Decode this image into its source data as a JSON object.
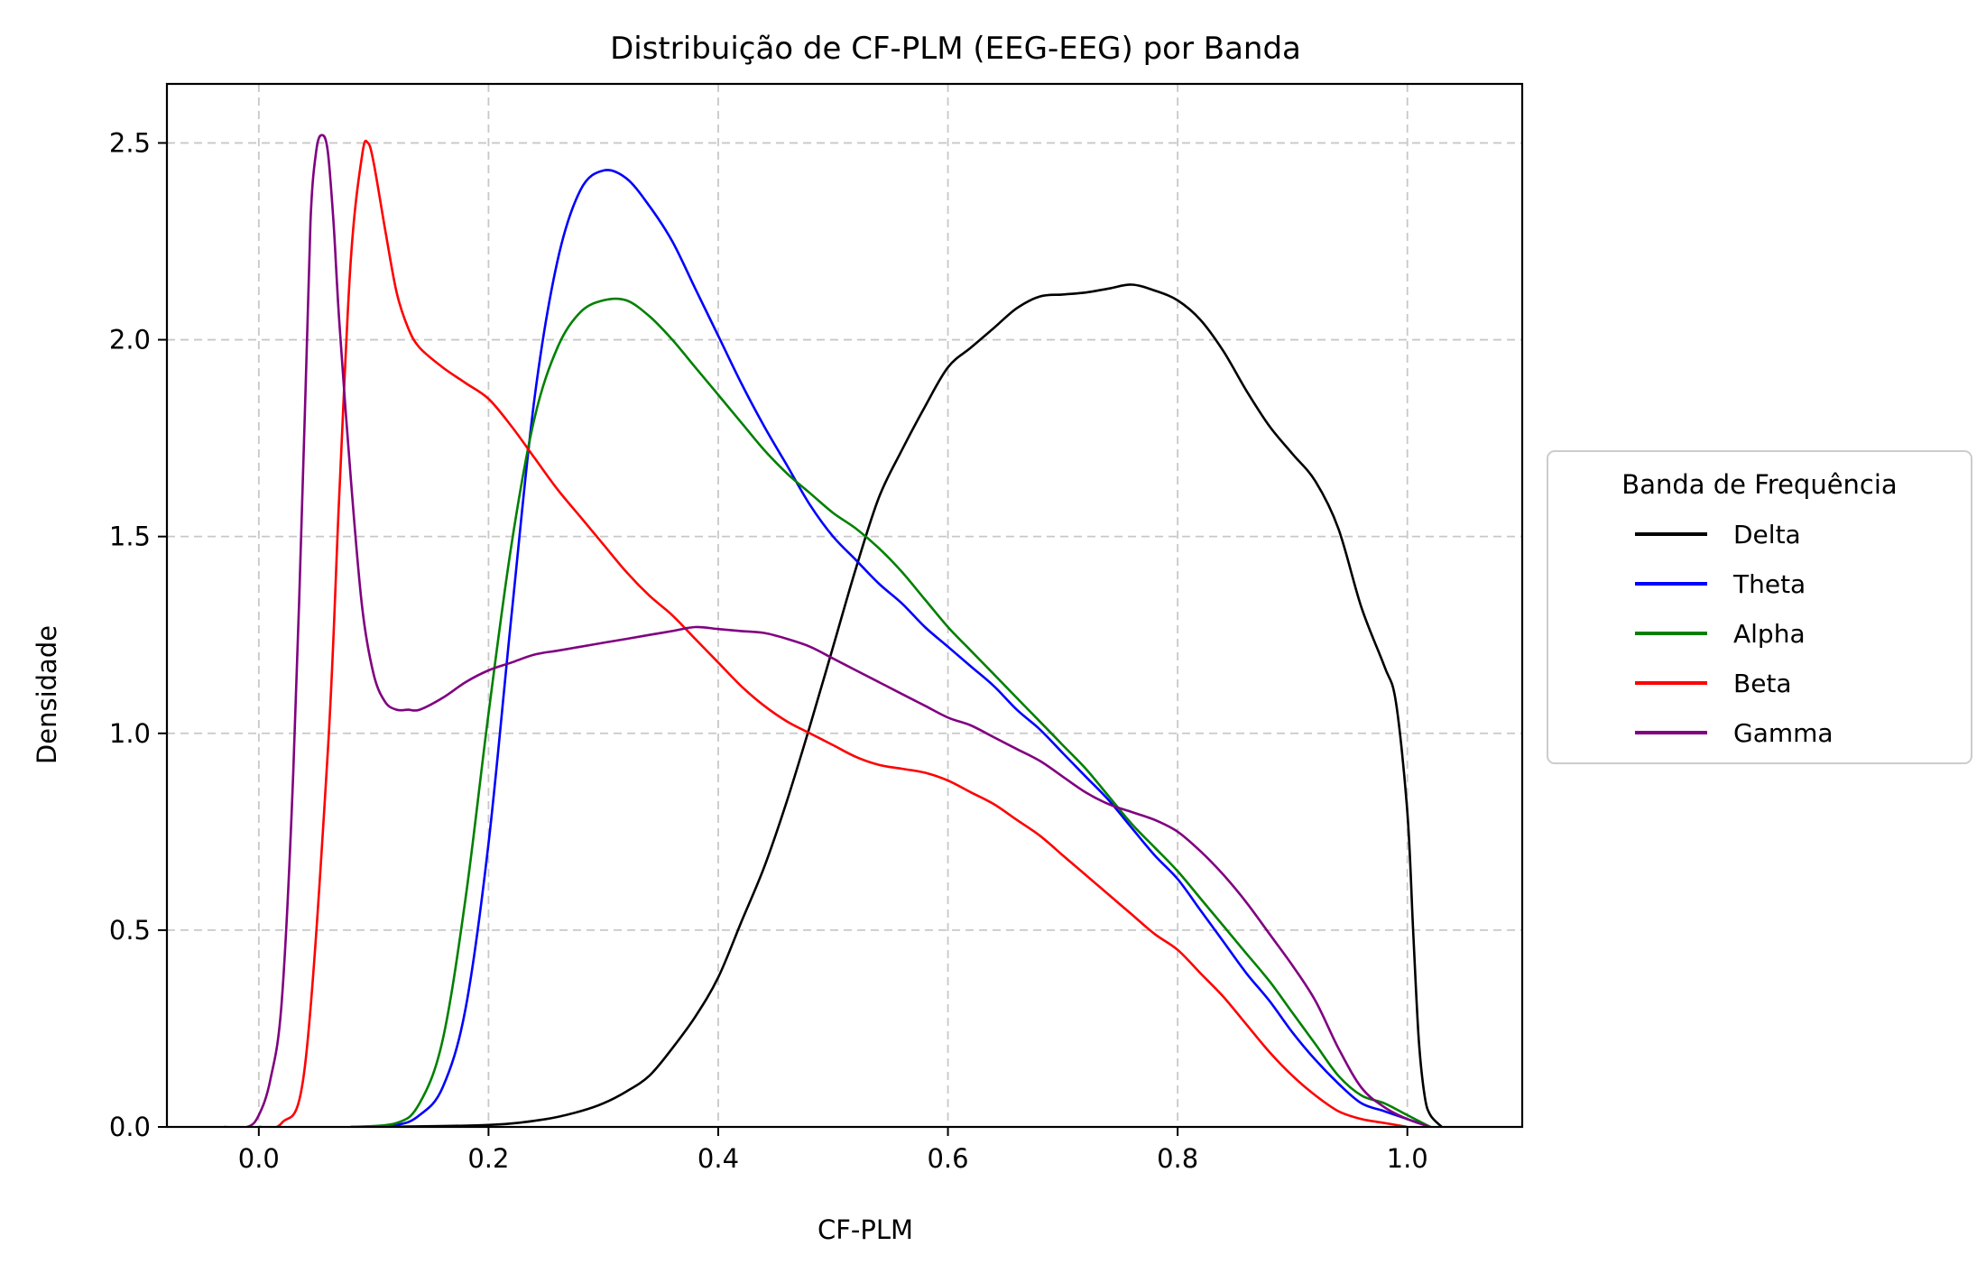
{
  "chart_data": {
    "type": "line",
    "title": "Distribuição de CF-PLM (EEG-EEG) por Banda",
    "xlabel": "CF-PLM",
    "ylabel": "Densidade",
    "xlim": [
      -0.08,
      1.1
    ],
    "ylim": [
      0.0,
      2.65
    ],
    "x_ticks": [
      0.0,
      0.2,
      0.4,
      0.6,
      0.8,
      1.0
    ],
    "x_tick_labels": [
      "0.0",
      "0.2",
      "0.4",
      "0.6",
      "0.8",
      "1.0"
    ],
    "y_ticks": [
      0.0,
      0.5,
      1.0,
      1.5,
      2.0,
      2.5
    ],
    "y_tick_labels": [
      "0.0",
      "0.5",
      "1.0",
      "1.5",
      "2.0",
      "2.5"
    ],
    "grid": true,
    "legend": {
      "title": "Banda de Frequência",
      "placement": "outside-right"
    },
    "series": [
      {
        "name": "Delta",
        "color": "#000000",
        "points": [
          [
            0.1,
            0.0
          ],
          [
            0.2,
            0.005
          ],
          [
            0.25,
            0.02
          ],
          [
            0.28,
            0.04
          ],
          [
            0.3,
            0.06
          ],
          [
            0.32,
            0.09
          ],
          [
            0.34,
            0.13
          ],
          [
            0.36,
            0.2
          ],
          [
            0.38,
            0.28
          ],
          [
            0.4,
            0.38
          ],
          [
            0.42,
            0.52
          ],
          [
            0.44,
            0.66
          ],
          [
            0.46,
            0.83
          ],
          [
            0.48,
            1.02
          ],
          [
            0.5,
            1.22
          ],
          [
            0.52,
            1.42
          ],
          [
            0.54,
            1.6
          ],
          [
            0.56,
            1.72
          ],
          [
            0.58,
            1.83
          ],
          [
            0.6,
            1.93
          ],
          [
            0.62,
            1.98
          ],
          [
            0.64,
            2.03
          ],
          [
            0.66,
            2.08
          ],
          [
            0.68,
            2.11
          ],
          [
            0.7,
            2.115
          ],
          [
            0.72,
            2.12
          ],
          [
            0.74,
            2.13
          ],
          [
            0.76,
            2.14
          ],
          [
            0.78,
            2.125
          ],
          [
            0.8,
            2.1
          ],
          [
            0.82,
            2.05
          ],
          [
            0.84,
            1.97
          ],
          [
            0.86,
            1.87
          ],
          [
            0.88,
            1.78
          ],
          [
            0.9,
            1.71
          ],
          [
            0.92,
            1.64
          ],
          [
            0.94,
            1.52
          ],
          [
            0.96,
            1.32
          ],
          [
            0.98,
            1.17
          ],
          [
            0.99,
            1.08
          ],
          [
            1.0,
            0.8
          ],
          [
            1.005,
            0.5
          ],
          [
            1.01,
            0.22
          ],
          [
            1.015,
            0.08
          ],
          [
            1.02,
            0.03
          ],
          [
            1.03,
            0.0
          ]
        ]
      },
      {
        "name": "Theta",
        "color": "#0000ff",
        "points": [
          [
            0.08,
            0.0
          ],
          [
            0.12,
            0.005
          ],
          [
            0.14,
            0.03
          ],
          [
            0.16,
            0.1
          ],
          [
            0.18,
            0.3
          ],
          [
            0.2,
            0.72
          ],
          [
            0.22,
            1.3
          ],
          [
            0.24,
            1.85
          ],
          [
            0.26,
            2.2
          ],
          [
            0.28,
            2.38
          ],
          [
            0.3,
            2.43
          ],
          [
            0.32,
            2.41
          ],
          [
            0.34,
            2.34
          ],
          [
            0.36,
            2.25
          ],
          [
            0.38,
            2.13
          ],
          [
            0.4,
            2.01
          ],
          [
            0.42,
            1.89
          ],
          [
            0.44,
            1.78
          ],
          [
            0.46,
            1.68
          ],
          [
            0.48,
            1.58
          ],
          [
            0.5,
            1.5
          ],
          [
            0.52,
            1.44
          ],
          [
            0.54,
            1.38
          ],
          [
            0.56,
            1.33
          ],
          [
            0.58,
            1.27
          ],
          [
            0.6,
            1.22
          ],
          [
            0.62,
            1.17
          ],
          [
            0.64,
            1.12
          ],
          [
            0.66,
            1.06
          ],
          [
            0.68,
            1.01
          ],
          [
            0.7,
            0.95
          ],
          [
            0.72,
            0.89
          ],
          [
            0.74,
            0.83
          ],
          [
            0.76,
            0.76
          ],
          [
            0.78,
            0.69
          ],
          [
            0.8,
            0.63
          ],
          [
            0.82,
            0.55
          ],
          [
            0.84,
            0.47
          ],
          [
            0.86,
            0.39
          ],
          [
            0.88,
            0.32
          ],
          [
            0.9,
            0.24
          ],
          [
            0.92,
            0.17
          ],
          [
            0.94,
            0.11
          ],
          [
            0.96,
            0.06
          ],
          [
            0.98,
            0.04
          ],
          [
            1.0,
            0.02
          ],
          [
            1.02,
            0.0
          ]
        ]
      },
      {
        "name": "Alpha",
        "color": "#008000",
        "points": [
          [
            0.08,
            0.0
          ],
          [
            0.12,
            0.01
          ],
          [
            0.14,
            0.06
          ],
          [
            0.16,
            0.22
          ],
          [
            0.18,
            0.58
          ],
          [
            0.2,
            1.05
          ],
          [
            0.22,
            1.48
          ],
          [
            0.24,
            1.8
          ],
          [
            0.26,
            1.98
          ],
          [
            0.28,
            2.07
          ],
          [
            0.3,
            2.1
          ],
          [
            0.32,
            2.1
          ],
          [
            0.34,
            2.06
          ],
          [
            0.36,
            2.0
          ],
          [
            0.38,
            1.93
          ],
          [
            0.4,
            1.86
          ],
          [
            0.42,
            1.79
          ],
          [
            0.44,
            1.72
          ],
          [
            0.46,
            1.66
          ],
          [
            0.48,
            1.61
          ],
          [
            0.5,
            1.56
          ],
          [
            0.52,
            1.52
          ],
          [
            0.54,
            1.47
          ],
          [
            0.56,
            1.41
          ],
          [
            0.58,
            1.34
          ],
          [
            0.6,
            1.27
          ],
          [
            0.62,
            1.21
          ],
          [
            0.64,
            1.15
          ],
          [
            0.66,
            1.09
          ],
          [
            0.68,
            1.03
          ],
          [
            0.7,
            0.97
          ],
          [
            0.72,
            0.91
          ],
          [
            0.74,
            0.84
          ],
          [
            0.76,
            0.77
          ],
          [
            0.78,
            0.71
          ],
          [
            0.8,
            0.65
          ],
          [
            0.82,
            0.58
          ],
          [
            0.84,
            0.51
          ],
          [
            0.86,
            0.44
          ],
          [
            0.88,
            0.37
          ],
          [
            0.9,
            0.29
          ],
          [
            0.92,
            0.21
          ],
          [
            0.94,
            0.13
          ],
          [
            0.96,
            0.08
          ],
          [
            0.98,
            0.06
          ],
          [
            1.0,
            0.03
          ],
          [
            1.02,
            0.0
          ]
        ]
      },
      {
        "name": "Beta",
        "color": "#ff0000",
        "points": [
          [
            0.0,
            0.0
          ],
          [
            0.02,
            0.01
          ],
          [
            0.04,
            0.15
          ],
          [
            0.06,
            0.95
          ],
          [
            0.07,
            1.6
          ],
          [
            0.08,
            2.2
          ],
          [
            0.09,
            2.47
          ],
          [
            0.095,
            2.5
          ],
          [
            0.1,
            2.45
          ],
          [
            0.11,
            2.28
          ],
          [
            0.12,
            2.12
          ],
          [
            0.13,
            2.03
          ],
          [
            0.14,
            1.98
          ],
          [
            0.16,
            1.93
          ],
          [
            0.18,
            1.89
          ],
          [
            0.2,
            1.85
          ],
          [
            0.22,
            1.78
          ],
          [
            0.24,
            1.7
          ],
          [
            0.26,
            1.62
          ],
          [
            0.28,
            1.55
          ],
          [
            0.3,
            1.48
          ],
          [
            0.32,
            1.41
          ],
          [
            0.34,
            1.35
          ],
          [
            0.36,
            1.3
          ],
          [
            0.38,
            1.24
          ],
          [
            0.4,
            1.18
          ],
          [
            0.42,
            1.12
          ],
          [
            0.44,
            1.07
          ],
          [
            0.46,
            1.03
          ],
          [
            0.48,
            1.0
          ],
          [
            0.5,
            0.97
          ],
          [
            0.52,
            0.94
          ],
          [
            0.54,
            0.92
          ],
          [
            0.56,
            0.91
          ],
          [
            0.58,
            0.9
          ],
          [
            0.6,
            0.88
          ],
          [
            0.62,
            0.85
          ],
          [
            0.64,
            0.82
          ],
          [
            0.66,
            0.78
          ],
          [
            0.68,
            0.74
          ],
          [
            0.7,
            0.69
          ],
          [
            0.72,
            0.64
          ],
          [
            0.74,
            0.59
          ],
          [
            0.76,
            0.54
          ],
          [
            0.78,
            0.49
          ],
          [
            0.8,
            0.45
          ],
          [
            0.82,
            0.39
          ],
          [
            0.84,
            0.33
          ],
          [
            0.86,
            0.26
          ],
          [
            0.88,
            0.19
          ],
          [
            0.9,
            0.13
          ],
          [
            0.92,
            0.08
          ],
          [
            0.94,
            0.04
          ],
          [
            0.96,
            0.02
          ],
          [
            0.98,
            0.01
          ],
          [
            1.0,
            0.0
          ]
        ]
      },
      {
        "name": "Gamma",
        "color": "#800080",
        "points": [
          [
            -0.03,
            0.0
          ],
          [
            -0.01,
            0.0
          ],
          [
            0.0,
            0.03
          ],
          [
            0.01,
            0.12
          ],
          [
            0.02,
            0.32
          ],
          [
            0.03,
            0.9
          ],
          [
            0.04,
            1.8
          ],
          [
            0.045,
            2.3
          ],
          [
            0.05,
            2.48
          ],
          [
            0.055,
            2.52
          ],
          [
            0.06,
            2.48
          ],
          [
            0.065,
            2.3
          ],
          [
            0.07,
            2.05
          ],
          [
            0.08,
            1.65
          ],
          [
            0.09,
            1.32
          ],
          [
            0.1,
            1.15
          ],
          [
            0.11,
            1.08
          ],
          [
            0.12,
            1.06
          ],
          [
            0.13,
            1.06
          ],
          [
            0.14,
            1.06
          ],
          [
            0.16,
            1.09
          ],
          [
            0.18,
            1.13
          ],
          [
            0.2,
            1.16
          ],
          [
            0.22,
            1.18
          ],
          [
            0.24,
            1.2
          ],
          [
            0.26,
            1.21
          ],
          [
            0.28,
            1.22
          ],
          [
            0.3,
            1.23
          ],
          [
            0.32,
            1.24
          ],
          [
            0.34,
            1.25
          ],
          [
            0.36,
            1.26
          ],
          [
            0.38,
            1.27
          ],
          [
            0.4,
            1.265
          ],
          [
            0.42,
            1.26
          ],
          [
            0.44,
            1.255
          ],
          [
            0.46,
            1.24
          ],
          [
            0.48,
            1.22
          ],
          [
            0.5,
            1.19
          ],
          [
            0.52,
            1.16
          ],
          [
            0.54,
            1.13
          ],
          [
            0.56,
            1.1
          ],
          [
            0.58,
            1.07
          ],
          [
            0.6,
            1.04
          ],
          [
            0.62,
            1.02
          ],
          [
            0.64,
            0.99
          ],
          [
            0.66,
            0.96
          ],
          [
            0.68,
            0.93
          ],
          [
            0.7,
            0.89
          ],
          [
            0.72,
            0.85
          ],
          [
            0.74,
            0.82
          ],
          [
            0.76,
            0.8
          ],
          [
            0.78,
            0.78
          ],
          [
            0.8,
            0.75
          ],
          [
            0.82,
            0.7
          ],
          [
            0.84,
            0.64
          ],
          [
            0.86,
            0.57
          ],
          [
            0.88,
            0.49
          ],
          [
            0.9,
            0.41
          ],
          [
            0.92,
            0.32
          ],
          [
            0.94,
            0.2
          ],
          [
            0.96,
            0.1
          ],
          [
            0.98,
            0.05
          ],
          [
            1.0,
            0.02
          ],
          [
            1.02,
            0.0
          ]
        ]
      }
    ]
  }
}
